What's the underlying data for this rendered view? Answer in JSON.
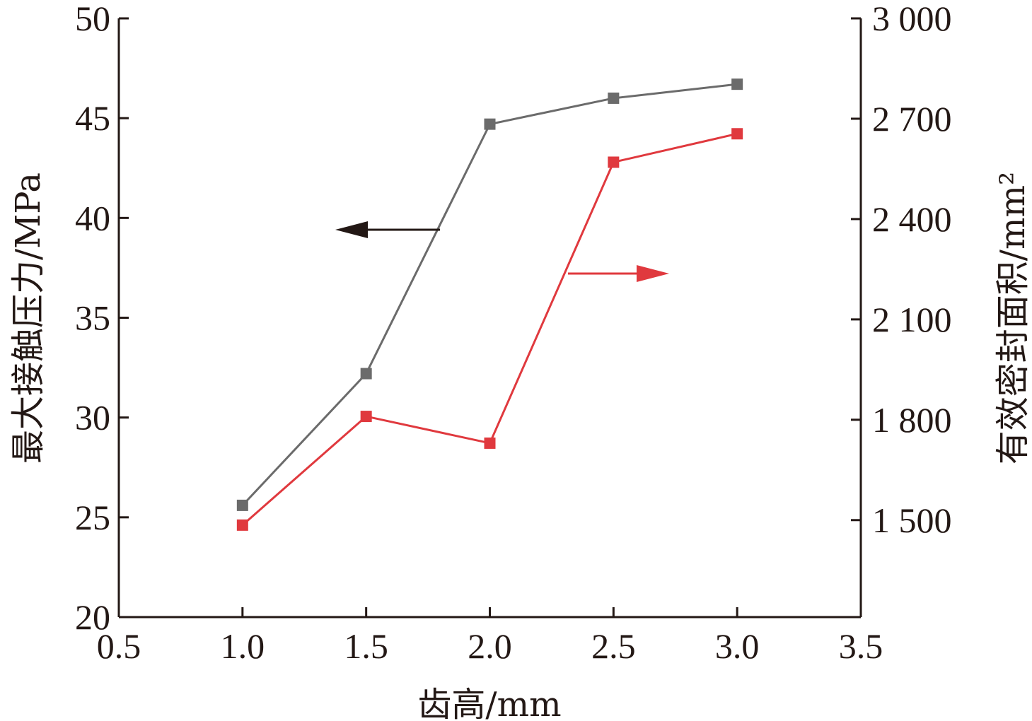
{
  "chart_data": {
    "type": "line",
    "xlabel": "齿高/mm",
    "ylabel_left": "最大接触压力/MPa",
    "ylabel_right": "有效密封面积/mm²",
    "xlim": [
      0.5,
      3.5
    ],
    "ylim_left": [
      20,
      50
    ],
    "ylim_right": [
      1210,
      3000
    ],
    "x_ticks": [
      "0.5",
      "1.0",
      "1.5",
      "2.0",
      "2.5",
      "3.0",
      "3.5"
    ],
    "y_left_ticks": [
      "20",
      "25",
      "30",
      "35",
      "40",
      "45",
      "50"
    ],
    "y_right_ticks": [
      "1 500",
      "1 800",
      "2 100",
      "2 400",
      "2 700",
      "3 000"
    ],
    "x": [
      1.0,
      1.5,
      2.0,
      2.5,
      3.0
    ],
    "series": [
      {
        "axis": "left",
        "color": "#6b6b6b",
        "values": [
          25.6,
          32.2,
          44.7,
          46.0,
          46.7
        ]
      },
      {
        "axis": "right",
        "color": "#e0393e",
        "values": [
          1485,
          1810,
          1730,
          2570,
          2655
        ]
      }
    ],
    "grid": false,
    "legend": "none",
    "annotations": [
      {
        "type": "arrow",
        "direction": "left",
        "points_to": "left axis",
        "color": "#231815"
      },
      {
        "type": "arrow",
        "direction": "right",
        "points_to": "right axis",
        "color": "#e0393e"
      }
    ]
  }
}
